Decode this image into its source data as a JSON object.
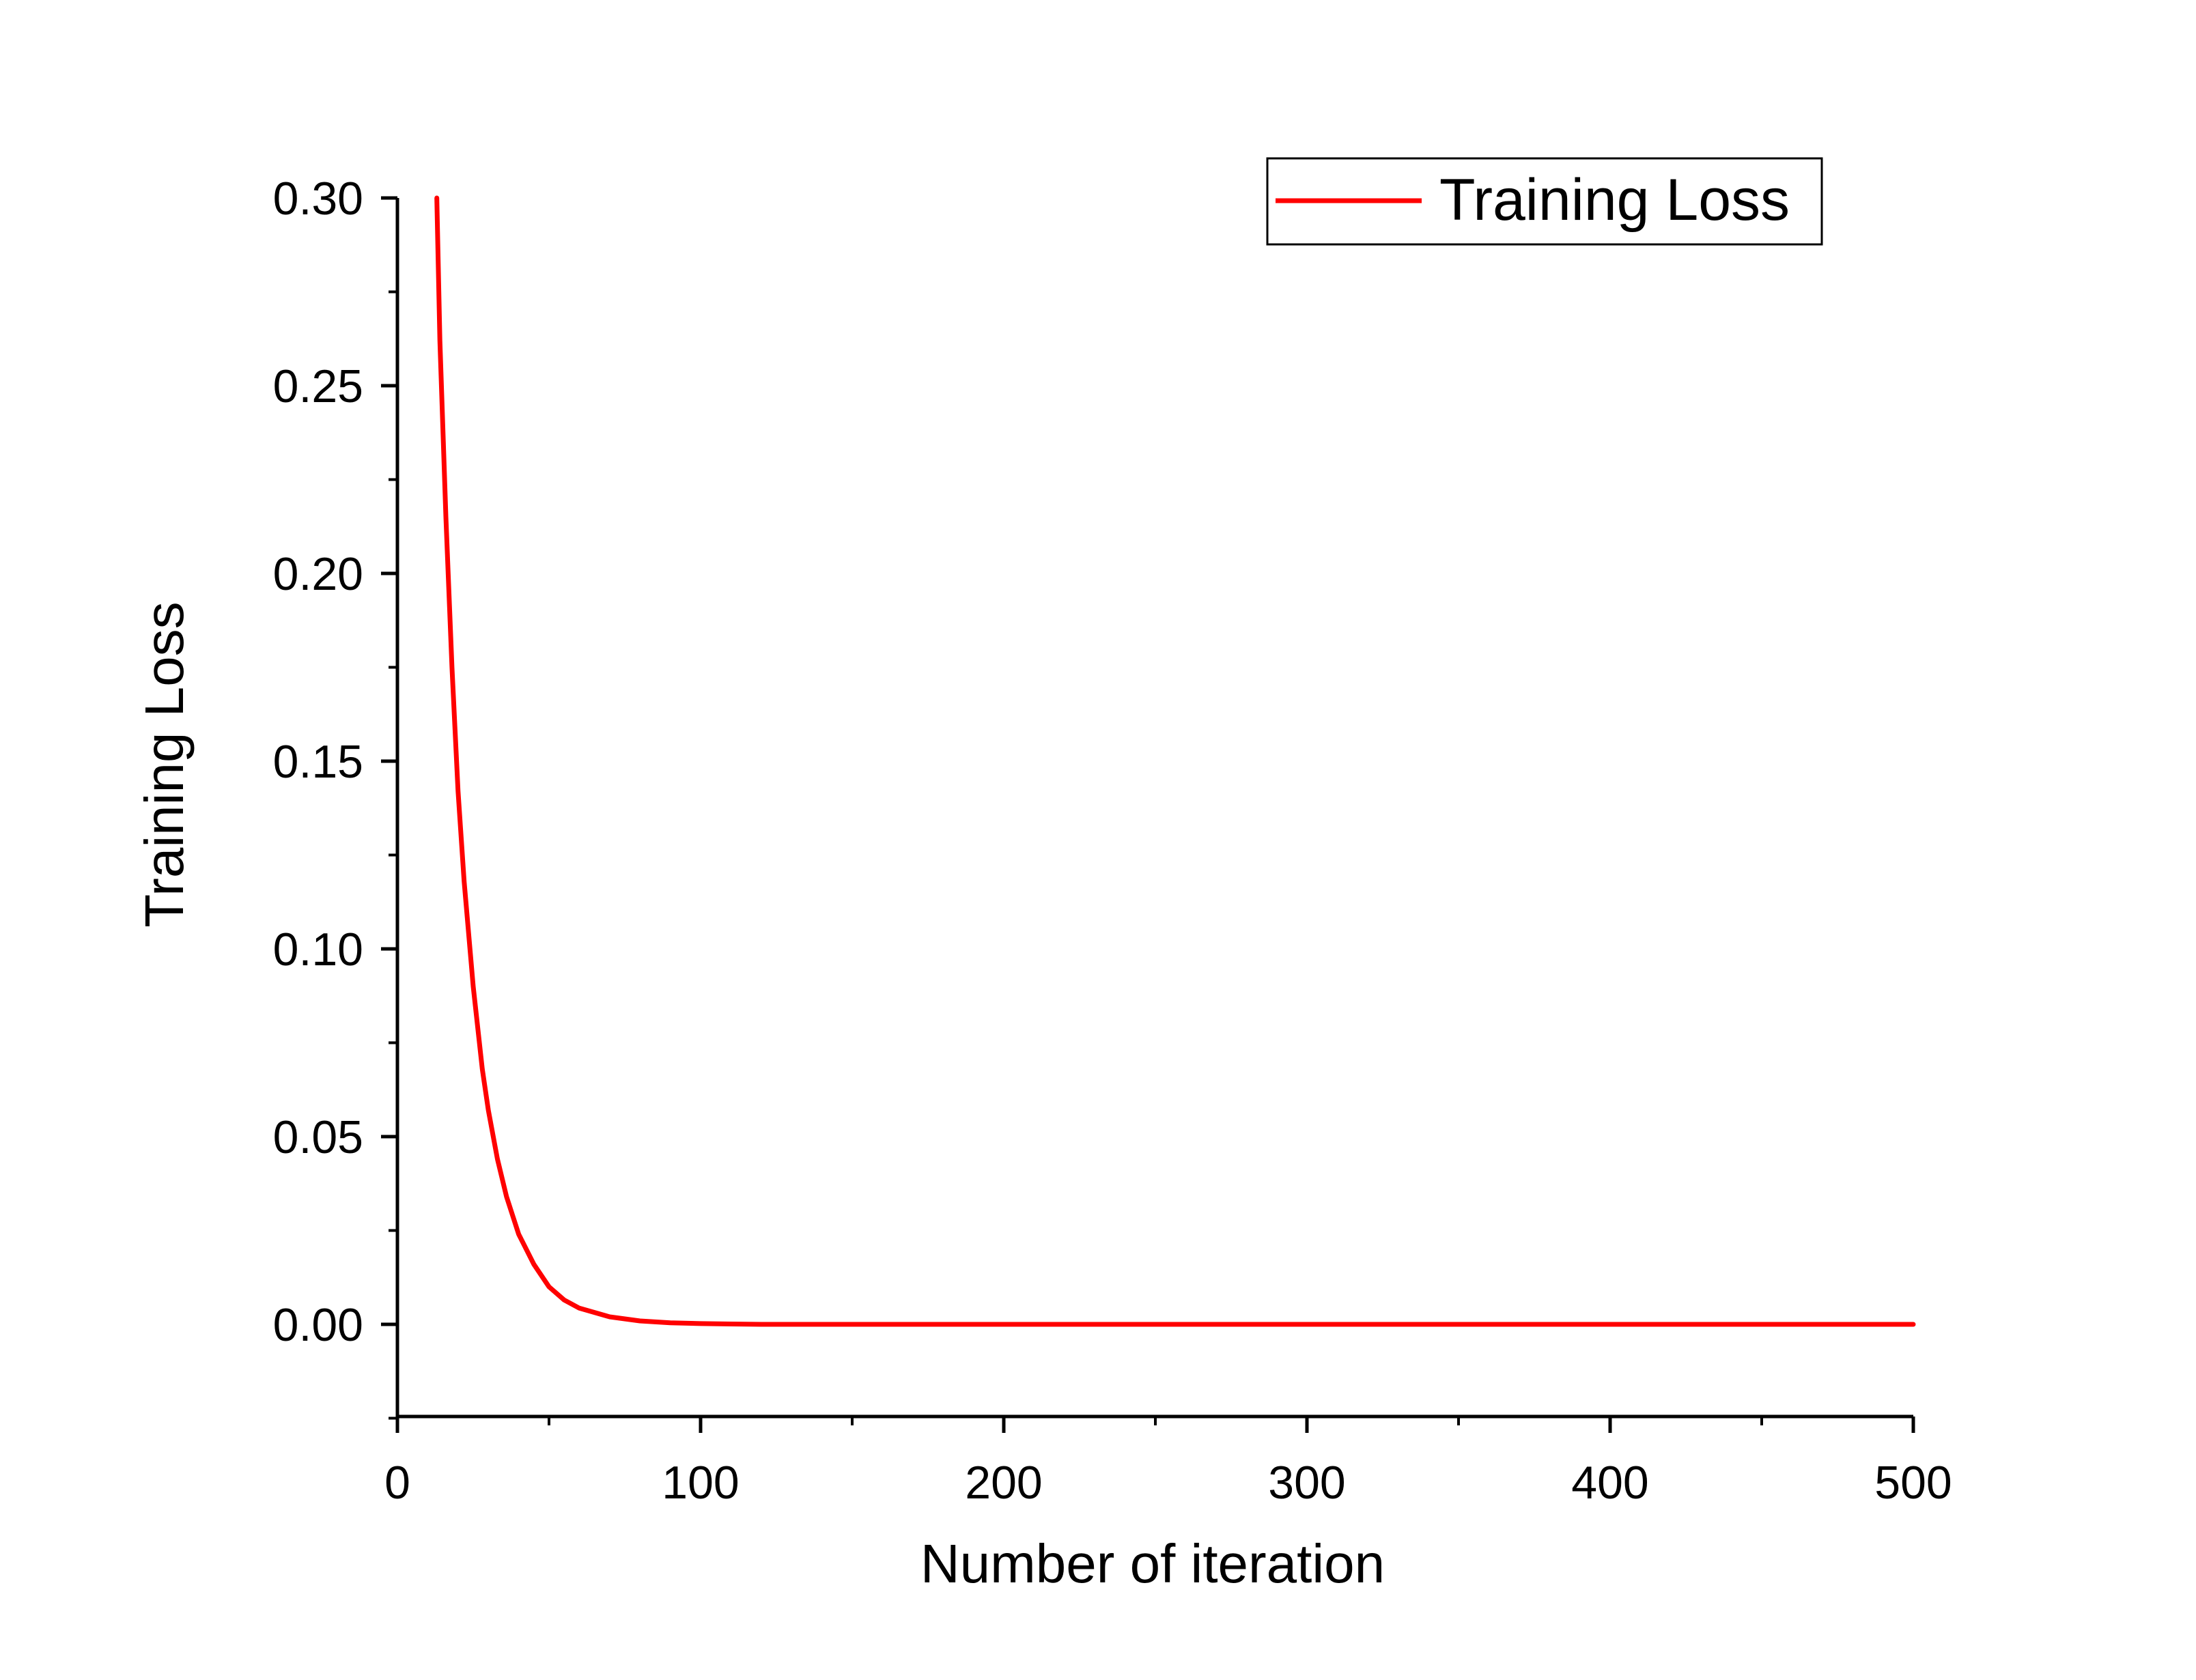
{
  "chart_data": {
    "type": "line",
    "xlabel": "Number of iteration",
    "ylabel": "Training Loss",
    "xlim": [
      0,
      500
    ],
    "ylim": [
      -0.025,
      0.3
    ],
    "x_ticks": [
      0,
      100,
      200,
      300,
      400,
      500
    ],
    "x_tick_labels": [
      "0",
      "100",
      "200",
      "300",
      "400",
      "500"
    ],
    "y_ticks": [
      0.0,
      0.05,
      0.1,
      0.15,
      0.2,
      0.25,
      0.3
    ],
    "y_tick_labels": [
      "0.00",
      "0.05",
      "0.10",
      "0.15",
      "0.20",
      "0.25",
      "0.30"
    ],
    "grid": false,
    "legend_position": "top-right",
    "series": [
      {
        "name": "Training Loss",
        "color": "#ff0000",
        "x": [
          13,
          14,
          16,
          18,
          20,
          22,
          25,
          28,
          30,
          33,
          36,
          40,
          45,
          50,
          55,
          60,
          70,
          80,
          90,
          100,
          110,
          120,
          150,
          200,
          250,
          300,
          350,
          400,
          450,
          500
        ],
        "y": [
          0.3,
          0.262,
          0.215,
          0.175,
          0.142,
          0.118,
          0.09,
          0.068,
          0.057,
          0.044,
          0.034,
          0.024,
          0.016,
          0.01,
          0.0065,
          0.0043,
          0.002,
          0.0009,
          0.0004,
          0.0002,
          0.0001,
          0.0,
          0.0,
          0.0,
          0.0,
          0.0,
          0.0,
          0.0,
          0.0,
          0.0
        ]
      }
    ]
  }
}
